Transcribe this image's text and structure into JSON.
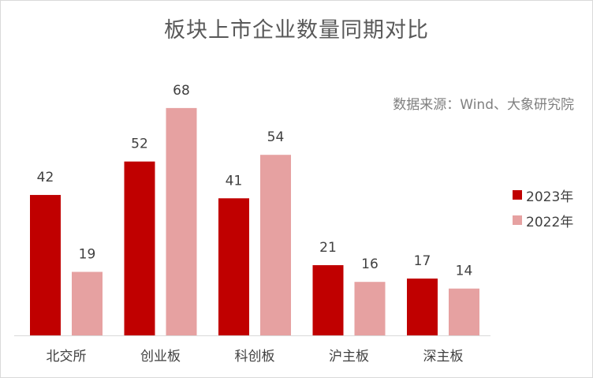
{
  "chart_data": {
    "type": "bar",
    "title": "板块上市企业数量同期对比",
    "source": "数据来源：Wind、大象研究院",
    "categories": [
      "北交所",
      "创业板",
      "科创板",
      "沪主板",
      "深主板"
    ],
    "series": [
      {
        "name": "2023年",
        "color": "#c00000",
        "values": [
          42,
          52,
          41,
          21,
          17
        ]
      },
      {
        "name": "2022年",
        "color": "#e6a1a1",
        "values": [
          19,
          68,
          54,
          16,
          14
        ]
      }
    ],
    "ylim": [
      0,
      78
    ],
    "grid": false,
    "legend_position": "right"
  }
}
